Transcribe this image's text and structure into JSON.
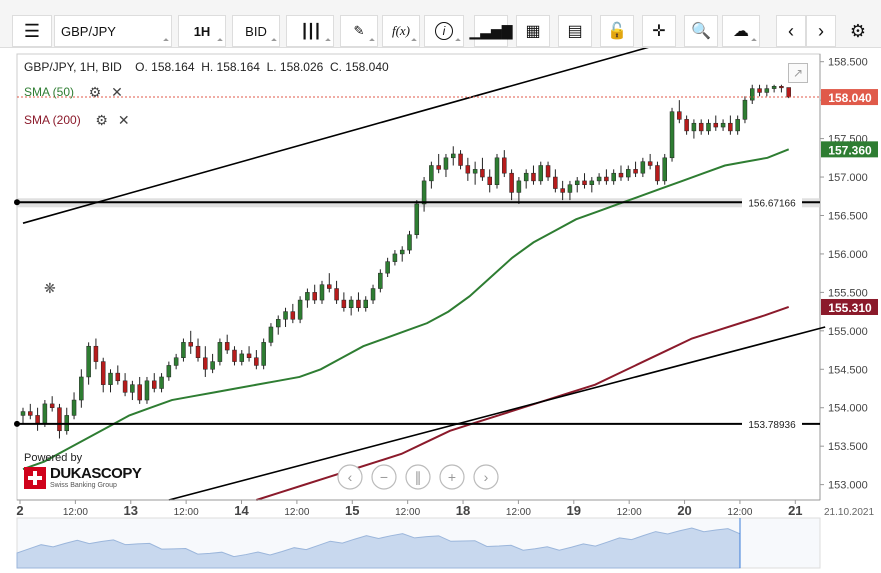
{
  "toolbar": {
    "symbol": "GBP/JPY",
    "period": "1H",
    "side": "BID",
    "icons": [
      "menu-icon",
      "candles-icon",
      "draw-icon",
      "function-icon",
      "info-icon",
      "bars-icon",
      "calendar-icon",
      "report-icon",
      "lock-icon",
      "crosshair-icon",
      "zoom-icon",
      "cloud-upload-icon",
      "prev-icon",
      "next-icon",
      "settings-icon"
    ]
  },
  "legend": {
    "ohlc": "GBP/JPY, 1H, BID    O. 158.164  H. 158.164  L. 158.026  C. 158.040",
    "sma50": "SMA (50)",
    "sma200": "SMA (200)"
  },
  "branding": {
    "powered_by": "Powered by",
    "logo_main": "DUKASCOPY",
    "logo_sub": "Swiss Banking Group"
  },
  "colors": {
    "bull": "#2e7d32",
    "bear": "#b71c1c",
    "sma50": "#2e7d32",
    "sma200": "#8b1a2b",
    "price_tag": "#e05a4a",
    "line": "#000000"
  },
  "chart_data": {
    "type": "candlestick",
    "symbol": "GBP/JPY",
    "timeframe": "1H",
    "ylim": [
      152.8,
      158.6
    ],
    "y_ticks": [
      "158.500",
      "158.000",
      "157.500",
      "157.000",
      "156.500",
      "156.000",
      "155.500",
      "155.000",
      "154.500",
      "154.000",
      "153.500",
      "153.000"
    ],
    "x_ticks": [
      "2",
      "12:00",
      "13",
      "12:00",
      "14",
      "12:00",
      "15",
      "12:00",
      "18",
      "12:00",
      "19",
      "12:00",
      "20",
      "12:00",
      "21"
    ],
    "x_date_label": "21.10.2021",
    "last_price": "158.040",
    "sma50_last": "157.360",
    "sma200_last": "155.310",
    "horizontal_levels": [
      {
        "label": "156.67166",
        "value": 156.67166
      },
      {
        "label": "153.78936",
        "value": 153.78936
      }
    ],
    "trendlines": [
      {
        "name": "upper",
        "from": [
          0,
          156.4
        ],
        "to": [
          90,
          158.8
        ]
      },
      {
        "name": "lower",
        "from": [
          20,
          152.8
        ],
        "to": [
          110,
          155.05
        ]
      }
    ],
    "candles": [
      [
        153.9,
        154.0,
        153.8,
        153.95
      ],
      [
        153.95,
        154.05,
        153.85,
        153.9
      ],
      [
        153.9,
        154.0,
        153.7,
        153.8
      ],
      [
        153.8,
        154.1,
        153.75,
        154.05
      ],
      [
        154.05,
        154.15,
        153.95,
        154.0
      ],
      [
        154.0,
        154.05,
        153.6,
        153.7
      ],
      [
        153.7,
        154.0,
        153.65,
        153.9
      ],
      [
        153.9,
        154.2,
        153.85,
        154.1
      ],
      [
        154.1,
        154.5,
        154.0,
        154.4
      ],
      [
        154.4,
        154.85,
        154.3,
        154.8
      ],
      [
        154.8,
        154.9,
        154.5,
        154.6
      ],
      [
        154.6,
        154.65,
        154.2,
        154.3
      ],
      [
        154.3,
        154.5,
        154.2,
        154.45
      ],
      [
        154.45,
        154.55,
        154.3,
        154.35
      ],
      [
        154.35,
        154.45,
        154.15,
        154.2
      ],
      [
        154.2,
        154.35,
        154.1,
        154.3
      ],
      [
        154.3,
        154.4,
        154.05,
        154.1
      ],
      [
        154.1,
        154.4,
        154.05,
        154.35
      ],
      [
        154.35,
        154.45,
        154.2,
        154.25
      ],
      [
        154.25,
        154.45,
        154.2,
        154.4
      ],
      [
        154.4,
        154.6,
        154.35,
        154.55
      ],
      [
        154.55,
        154.7,
        154.5,
        154.65
      ],
      [
        154.65,
        154.9,
        154.6,
        154.85
      ],
      [
        154.85,
        155.0,
        154.7,
        154.8
      ],
      [
        154.8,
        154.9,
        154.6,
        154.65
      ],
      [
        154.65,
        154.8,
        154.4,
        154.5
      ],
      [
        154.5,
        154.7,
        154.45,
        154.6
      ],
      [
        154.6,
        154.9,
        154.55,
        154.85
      ],
      [
        154.85,
        154.95,
        154.7,
        154.75
      ],
      [
        154.75,
        154.8,
        154.55,
        154.6
      ],
      [
        154.6,
        154.75,
        154.55,
        154.7
      ],
      [
        154.7,
        154.8,
        154.6,
        154.65
      ],
      [
        154.65,
        154.75,
        154.5,
        154.55
      ],
      [
        154.55,
        154.9,
        154.5,
        154.85
      ],
      [
        154.85,
        155.1,
        154.8,
        155.05
      ],
      [
        155.05,
        155.2,
        154.95,
        155.15
      ],
      [
        155.15,
        155.3,
        155.05,
        155.25
      ],
      [
        155.25,
        155.35,
        155.1,
        155.15
      ],
      [
        155.15,
        155.45,
        155.1,
        155.4
      ],
      [
        155.4,
        155.55,
        155.3,
        155.5
      ],
      [
        155.5,
        155.6,
        155.35,
        155.4
      ],
      [
        155.4,
        155.65,
        155.35,
        155.6
      ],
      [
        155.6,
        155.75,
        155.5,
        155.55
      ],
      [
        155.55,
        155.65,
        155.35,
        155.4
      ],
      [
        155.4,
        155.5,
        155.25,
        155.3
      ],
      [
        155.3,
        155.45,
        155.2,
        155.4
      ],
      [
        155.4,
        155.5,
        155.25,
        155.3
      ],
      [
        155.3,
        155.45,
        155.25,
        155.4
      ],
      [
        155.4,
        155.6,
        155.35,
        155.55
      ],
      [
        155.55,
        155.8,
        155.5,
        155.75
      ],
      [
        155.75,
        155.95,
        155.7,
        155.9
      ],
      [
        155.9,
        156.05,
        155.85,
        156.0
      ],
      [
        156.0,
        156.1,
        155.9,
        156.05
      ],
      [
        156.05,
        156.3,
        156.0,
        156.25
      ],
      [
        156.25,
        156.7,
        156.2,
        156.65
      ],
      [
        156.65,
        157.0,
        156.55,
        156.95
      ],
      [
        156.95,
        157.2,
        156.85,
        157.15
      ],
      [
        157.15,
        157.3,
        157.05,
        157.1
      ],
      [
        157.1,
        157.3,
        157.0,
        157.25
      ],
      [
        157.25,
        157.4,
        157.15,
        157.3
      ],
      [
        157.3,
        157.35,
        157.1,
        157.15
      ],
      [
        157.15,
        157.25,
        156.95,
        157.05
      ],
      [
        157.05,
        157.2,
        156.9,
        157.1
      ],
      [
        157.1,
        157.25,
        156.95,
        157.0
      ],
      [
        157.0,
        157.1,
        156.8,
        156.9
      ],
      [
        156.9,
        157.3,
        156.85,
        157.25
      ],
      [
        157.25,
        157.35,
        157.0,
        157.05
      ],
      [
        157.05,
        157.1,
        156.7,
        156.8
      ],
      [
        156.8,
        157.0,
        156.65,
        156.95
      ],
      [
        156.95,
        157.1,
        156.85,
        157.05
      ],
      [
        157.05,
        157.15,
        156.9,
        156.95
      ],
      [
        156.95,
        157.2,
        156.9,
        157.15
      ],
      [
        157.15,
        157.2,
        156.95,
        157.0
      ],
      [
        157.0,
        157.1,
        156.8,
        156.85
      ],
      [
        156.85,
        156.95,
        156.7,
        156.8
      ],
      [
        156.8,
        156.95,
        156.7,
        156.9
      ],
      [
        156.9,
        157.0,
        156.8,
        156.95
      ],
      [
        156.95,
        157.05,
        156.85,
        156.9
      ],
      [
        156.9,
        157.0,
        156.8,
        156.95
      ],
      [
        156.95,
        157.05,
        156.9,
        157.0
      ],
      [
        157.0,
        157.1,
        156.9,
        156.95
      ],
      [
        156.95,
        157.1,
        156.9,
        157.05
      ],
      [
        157.05,
        157.15,
        156.95,
        157.0
      ],
      [
        157.0,
        157.15,
        156.95,
        157.1
      ],
      [
        157.1,
        157.2,
        157.0,
        157.05
      ],
      [
        157.05,
        157.25,
        157.0,
        157.2
      ],
      [
        157.2,
        157.3,
        157.1,
        157.15
      ],
      [
        157.15,
        157.2,
        156.9,
        156.95
      ],
      [
        156.95,
        157.3,
        156.9,
        157.25
      ],
      [
        157.25,
        157.9,
        157.2,
        157.85
      ],
      [
        157.85,
        158.0,
        157.7,
        157.75
      ],
      [
        157.75,
        157.8,
        157.55,
        157.6
      ],
      [
        157.6,
        157.75,
        157.5,
        157.7
      ],
      [
        157.7,
        157.75,
        157.55,
        157.6
      ],
      [
        157.6,
        157.75,
        157.55,
        157.7
      ],
      [
        157.7,
        157.8,
        157.6,
        157.65
      ],
      [
        157.65,
        157.75,
        157.6,
        157.7
      ],
      [
        157.7,
        157.8,
        157.55,
        157.6
      ],
      [
        157.6,
        157.8,
        157.55,
        157.75
      ],
      [
        157.75,
        158.05,
        157.7,
        158.0
      ],
      [
        158.0,
        158.2,
        157.95,
        158.15
      ],
      [
        158.15,
        158.2,
        158.05,
        158.1
      ],
      [
        158.1,
        158.2,
        158.05,
        158.15
      ],
      [
        158.15,
        158.2,
        158.1,
        158.18
      ],
      [
        158.18,
        158.2,
        158.1,
        158.16
      ],
      [
        158.164,
        158.164,
        158.026,
        158.04
      ]
    ],
    "sma50": [
      153.2,
      153.3,
      153.45,
      153.6,
      153.75,
      153.9,
      154.0,
      154.1,
      154.15,
      154.2,
      154.25,
      154.3,
      154.35,
      154.4,
      154.5,
      154.65,
      154.8,
      154.9,
      155.0,
      155.1,
      155.25,
      155.45,
      155.7,
      155.95,
      156.15,
      156.3,
      156.45,
      156.55,
      156.65,
      156.75,
      156.85,
      156.95,
      157.05,
      157.15,
      157.2,
      157.25,
      157.36
    ],
    "sma200": [
      152.8,
      152.9,
      153.0,
      153.1,
      153.2,
      153.3,
      153.4,
      153.55,
      153.7,
      153.8,
      153.9,
      154.0,
      154.1,
      154.2,
      154.3,
      154.45,
      154.6,
      154.75,
      154.9,
      155.0,
      155.1,
      155.2,
      155.31
    ]
  }
}
